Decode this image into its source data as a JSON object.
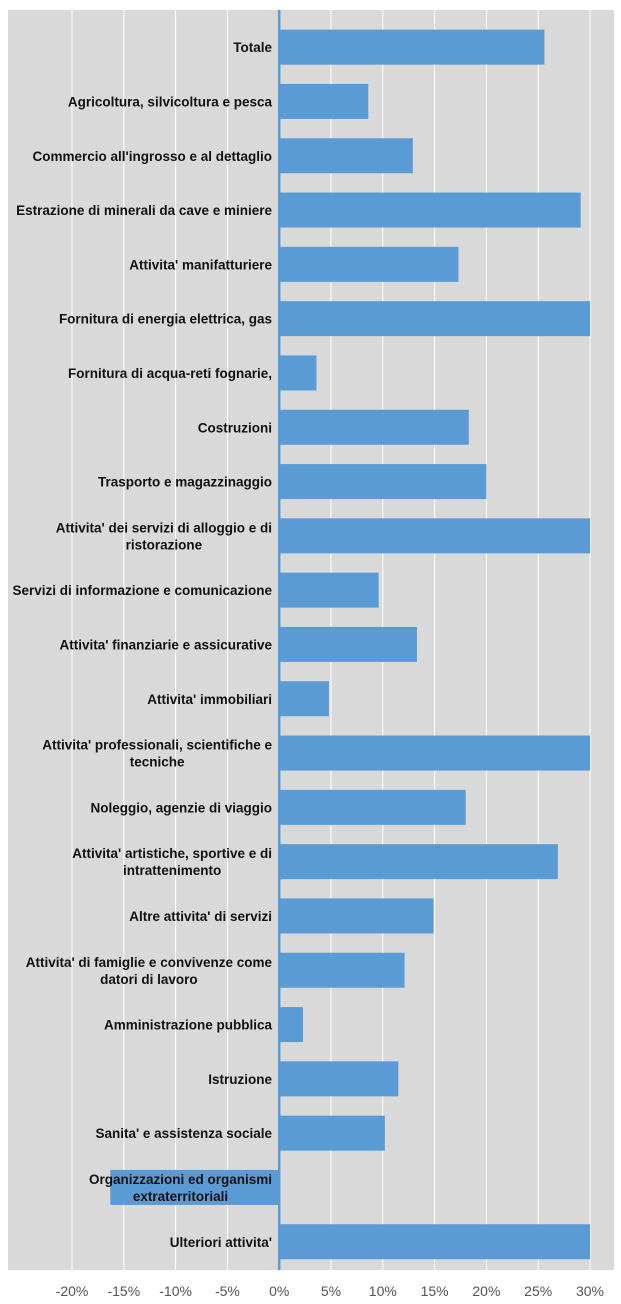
{
  "chart_data": {
    "type": "bar",
    "orientation": "horizontal",
    "title": "",
    "xlabel": "",
    "ylabel": "",
    "xlim": [
      -0.2,
      0.3
    ],
    "x_ticks": [
      -0.2,
      -0.15,
      -0.1,
      -0.05,
      0,
      0.05,
      0.1,
      0.15,
      0.2,
      0.25,
      0.3
    ],
    "x_tick_labels": [
      "-20%",
      "-15%",
      "-10%",
      "-5%",
      "0%",
      "5%",
      "10%",
      "15%",
      "20%",
      "25%",
      "30%"
    ],
    "grid": true,
    "legend": "none",
    "colors": {
      "bar": "#5b9bd5",
      "plot_background": "#d9d9d9",
      "gridline": "#ffffff",
      "axis_line": "#5b9bd5"
    },
    "categories": [
      [
        "Totale"
      ],
      [
        "Agricoltura, silvicoltura e pesca"
      ],
      [
        "Commercio all'ingrosso e al dettaglio"
      ],
      [
        "Estrazione di minerali da cave e miniere"
      ],
      [
        "Attivita' manifatturiere"
      ],
      [
        "Fornitura di energia elettrica, gas"
      ],
      [
        "Fornitura di acqua-reti fognarie,"
      ],
      [
        "Costruzioni"
      ],
      [
        "Trasporto e magazzinaggio"
      ],
      [
        "Attivita' dei servizi di alloggio e di",
        "ristorazione"
      ],
      [
        "Servizi di informazione e comunicazione"
      ],
      [
        "Attivita' finanziarie e assicurative"
      ],
      [
        "Attivita' immobiliari"
      ],
      [
        "Attivita' professionali, scientifiche e",
        "tecniche"
      ],
      [
        "Noleggio, agenzie di viaggio"
      ],
      [
        "Attivita' artistiche, sportive e di",
        "intrattenimento"
      ],
      [
        "Altre attivita' di servizi"
      ],
      [
        "Attivita' di famiglie e convivenze come",
        "datori di lavoro"
      ],
      [
        "Amministrazione pubblica"
      ],
      [
        "Istruzione"
      ],
      [
        "Sanita' e assistenza sociale"
      ],
      [
        "Organizzazioni ed organismi",
        "extraterritoriali"
      ],
      [
        "Ulteriori attivita'"
      ]
    ],
    "values": [
      0.256,
      0.086,
      0.129,
      0.291,
      0.173,
      0.3,
      0.036,
      0.183,
      0.2,
      0.3,
      0.096,
      0.133,
      0.048,
      0.3,
      0.18,
      0.269,
      0.149,
      0.121,
      0.023,
      0.115,
      0.102,
      -0.163,
      0.3
    ]
  }
}
